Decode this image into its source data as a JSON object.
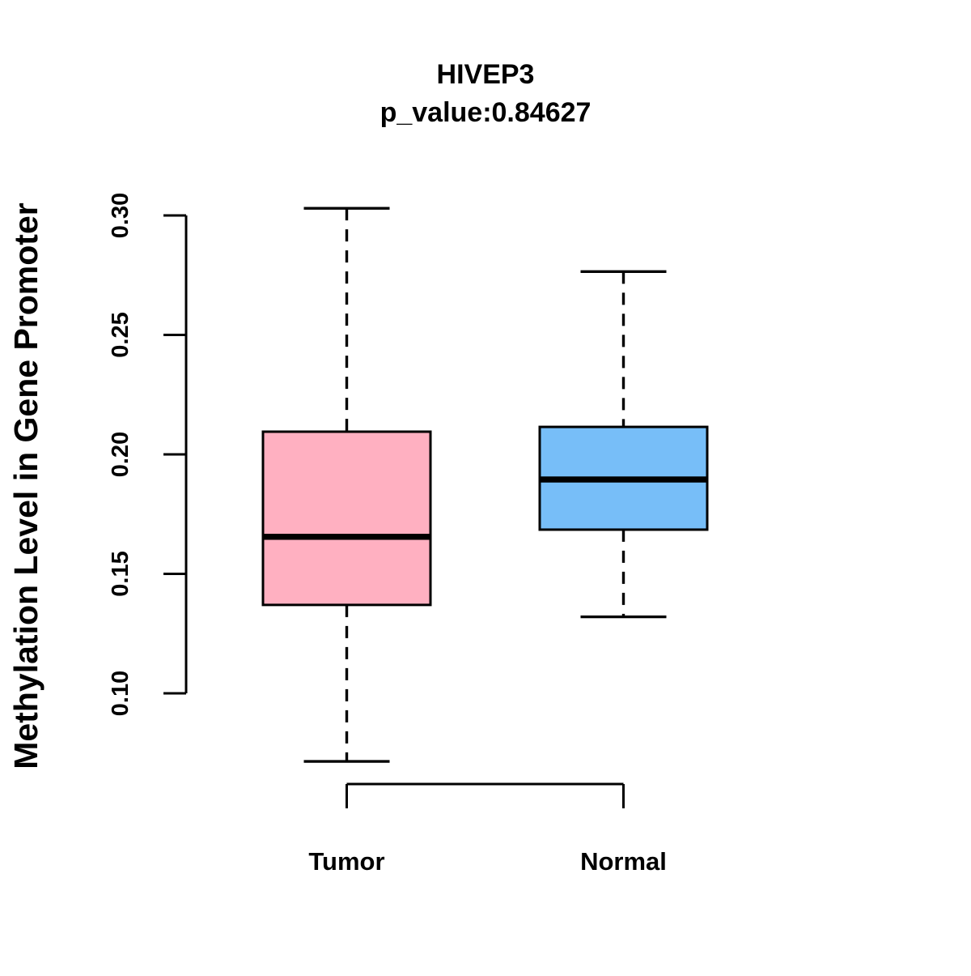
{
  "figure": {
    "background": "#ffffff",
    "title": "HIVEP3",
    "subtitle": "p_value:0.84627",
    "ylabel": "Methylation Level in Gene Promoter"
  },
  "chart_data": {
    "type": "boxplot",
    "title": "HIVEP3",
    "subtitle": "p_value:0.84627",
    "xlabel": "",
    "ylabel": "Methylation Level in Gene Promoter",
    "categories": [
      "Tumor",
      "Normal"
    ],
    "y_ticks": [
      "0.10",
      "0.15",
      "0.20",
      "0.25",
      "0.30"
    ],
    "ylim": [
      0.1,
      0.3
    ],
    "grid": false,
    "legend": "none",
    "whisker_style": "dashed",
    "series": [
      {
        "name": "Tumor",
        "color": "#FFB0C1",
        "stats": {
          "lower_whisker": 0.0715,
          "q1": 0.137,
          "median": 0.1655,
          "q3": 0.2095,
          "upper_whisker": 0.303
        }
      },
      {
        "name": "Normal",
        "color": "#77BEF8",
        "stats": {
          "lower_whisker": 0.132,
          "q1": 0.1685,
          "median": 0.1895,
          "q3": 0.2115,
          "upper_whisker": 0.2765
        }
      }
    ],
    "colors": {
      "box_border": "#000000",
      "median": "#000000",
      "axis": "#000000",
      "text": "#000000"
    }
  }
}
